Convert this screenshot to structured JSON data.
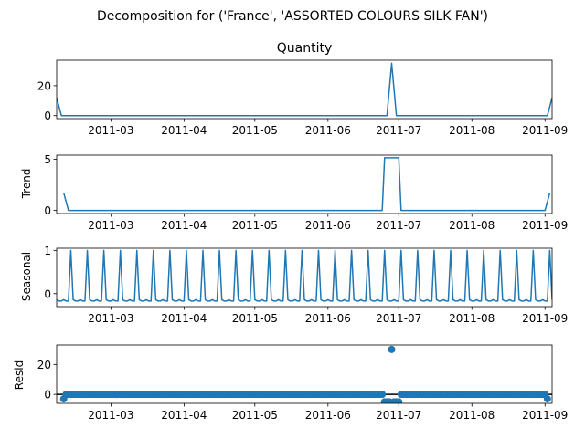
{
  "figure": {
    "suptitle": "Decomposition for ('France', 'ASSORTED COLOURS SILK FAN')"
  },
  "colors": {
    "line": "#1f77b4",
    "axis": "#000000",
    "zero_line": "#000000"
  },
  "chart_data": [
    {
      "type": "line",
      "title": "Quantity",
      "ylabel": "",
      "xlim": [
        "2011-02-06",
        "2011-09-04"
      ],
      "ylim": [
        -2,
        37
      ],
      "yticks": [
        0,
        20
      ],
      "xticks": [
        "2011-03",
        "2011-04",
        "2011-05",
        "2011-06",
        "2011-07",
        "2011-08",
        "2011-09"
      ],
      "x": [
        "2011-02-06",
        "2011-02-08",
        "2011-06-26",
        "2011-06-28",
        "2011-06-30",
        "2011-09-02",
        "2011-09-04"
      ],
      "y": [
        12,
        0,
        0,
        35,
        0,
        0,
        12
      ]
    },
    {
      "type": "line",
      "title": "",
      "ylabel": "Trend",
      "xlim": [
        "2011-02-06",
        "2011-09-04"
      ],
      "ylim": [
        -0.3,
        5.4
      ],
      "yticks": [
        0,
        5
      ],
      "xticks": [
        "2011-03",
        "2011-04",
        "2011-05",
        "2011-06",
        "2011-07",
        "2011-08",
        "2011-09"
      ],
      "x": [
        "2011-02-09",
        "2011-02-11",
        "2011-06-24",
        "2011-06-25",
        "2011-07-01",
        "2011-07-02",
        "2011-09-01",
        "2011-09-03"
      ],
      "y": [
        1.71,
        0,
        0,
        5.14,
        5.14,
        0,
        0,
        1.71
      ]
    },
    {
      "type": "line",
      "title": "",
      "ylabel": "Seasonal",
      "xlim": [
        "2011-02-06",
        "2011-09-04"
      ],
      "ylim": [
        -0.3,
        1.05
      ],
      "yticks": [
        0,
        1
      ],
      "xticks": [
        "2011-03",
        "2011-04",
        "2011-05",
        "2011-06",
        "2011-07",
        "2011-08",
        "2011-09"
      ],
      "period_days": 7,
      "pattern": [
        -0.14,
        -0.17,
        -0.17,
        -0.14,
        -0.17,
        -0.17,
        1.0
      ],
      "start": "2011-02-06"
    },
    {
      "type": "scatter",
      "title": "",
      "ylabel": "Resid",
      "xlim": [
        "2011-02-06",
        "2011-09-04"
      ],
      "ylim": [
        -6,
        33
      ],
      "yticks": [
        0,
        20
      ],
      "xticks": [
        "2011-03",
        "2011-04",
        "2011-05",
        "2011-06",
        "2011-07",
        "2011-08",
        "2011-09"
      ],
      "zero_line": true,
      "points": [
        {
          "x": "2011-02-09",
          "y": -3
        },
        {
          "x": "2011-02-10",
          "y": 0
        },
        {
          "x": "2011-02-11",
          "y": 0
        },
        {
          "x": "2011-02-12",
          "y": 0
        },
        {
          "x": "2011-02-13",
          "y": 0
        },
        {
          "x": "2011-02-14",
          "y": 0
        },
        {
          "x": "2011-02-15",
          "y": 0
        },
        {
          "x": "2011-02-16",
          "y": 0
        },
        {
          "x": "2011-02-17",
          "y": 0
        },
        {
          "x": "2011-02-18",
          "y": 0
        },
        {
          "x": "2011-02-19",
          "y": 0
        },
        {
          "x": "2011-02-20",
          "y": 0
        },
        {
          "x": "2011-02-21",
          "y": 0
        },
        {
          "x": "2011-02-22",
          "y": 0
        },
        {
          "x": "2011-02-23",
          "y": 0
        },
        {
          "x": "2011-02-24",
          "y": 0
        },
        {
          "x": "2011-02-25",
          "y": 0
        },
        {
          "x": "2011-02-26",
          "y": 0
        },
        {
          "x": "2011-02-27",
          "y": 0
        },
        {
          "x": "2011-02-28",
          "y": 0
        },
        {
          "x": "2011-03-01",
          "y": 0
        },
        {
          "x": "2011-03-02",
          "y": 0
        },
        {
          "x": "2011-03-03",
          "y": 0
        },
        {
          "x": "2011-03-04",
          "y": 0
        },
        {
          "x": "2011-03-05",
          "y": 0
        },
        {
          "x": "2011-03-06",
          "y": 0
        },
        {
          "x": "2011-03-07",
          "y": 0
        },
        {
          "x": "2011-03-08",
          "y": 0
        },
        {
          "x": "2011-03-09",
          "y": 0
        },
        {
          "x": "2011-03-10",
          "y": 0
        },
        {
          "x": "2011-03-11",
          "y": 0
        },
        {
          "x": "2011-03-12",
          "y": 0
        },
        {
          "x": "2011-03-13",
          "y": 0
        },
        {
          "x": "2011-03-14",
          "y": 0
        },
        {
          "x": "2011-03-15",
          "y": 0
        },
        {
          "x": "2011-03-16",
          "y": 0
        },
        {
          "x": "2011-03-17",
          "y": 0
        },
        {
          "x": "2011-03-18",
          "y": 0
        },
        {
          "x": "2011-03-19",
          "y": 0
        },
        {
          "x": "2011-03-20",
          "y": 0
        },
        {
          "x": "2011-03-21",
          "y": 0
        },
        {
          "x": "2011-03-22",
          "y": 0
        },
        {
          "x": "2011-03-23",
          "y": 0
        },
        {
          "x": "2011-03-24",
          "y": 0
        },
        {
          "x": "2011-03-25",
          "y": 0
        },
        {
          "x": "2011-03-26",
          "y": 0
        },
        {
          "x": "2011-03-27",
          "y": 0
        },
        {
          "x": "2011-03-28",
          "y": 0
        },
        {
          "x": "2011-03-29",
          "y": 0
        },
        {
          "x": "2011-03-30",
          "y": 0
        },
        {
          "x": "2011-03-31",
          "y": 0
        },
        {
          "x": "2011-04-01",
          "y": 0
        },
        {
          "x": "2011-04-02",
          "y": 0
        },
        {
          "x": "2011-04-03",
          "y": 0
        },
        {
          "x": "2011-04-04",
          "y": 0
        },
        {
          "x": "2011-04-05",
          "y": 0
        },
        {
          "x": "2011-04-06",
          "y": 0
        },
        {
          "x": "2011-04-07",
          "y": 0
        },
        {
          "x": "2011-04-08",
          "y": 0
        },
        {
          "x": "2011-04-09",
          "y": 0
        },
        {
          "x": "2011-04-10",
          "y": 0
        },
        {
          "x": "2011-04-11",
          "y": 0
        },
        {
          "x": "2011-04-12",
          "y": 0
        },
        {
          "x": "2011-04-13",
          "y": 0
        },
        {
          "x": "2011-04-14",
          "y": 0
        },
        {
          "x": "2011-04-15",
          "y": 0
        },
        {
          "x": "2011-04-16",
          "y": 0
        },
        {
          "x": "2011-04-17",
          "y": 0
        },
        {
          "x": "2011-04-18",
          "y": 0
        },
        {
          "x": "2011-04-19",
          "y": 0
        },
        {
          "x": "2011-04-20",
          "y": 0
        },
        {
          "x": "2011-04-21",
          "y": 0
        },
        {
          "x": "2011-04-22",
          "y": 0
        },
        {
          "x": "2011-04-23",
          "y": 0
        },
        {
          "x": "2011-04-24",
          "y": 0
        },
        {
          "x": "2011-04-25",
          "y": 0
        },
        {
          "x": "2011-04-26",
          "y": 0
        },
        {
          "x": "2011-04-27",
          "y": 0
        },
        {
          "x": "2011-04-28",
          "y": 0
        },
        {
          "x": "2011-04-29",
          "y": 0
        },
        {
          "x": "2011-04-30",
          "y": 0
        },
        {
          "x": "2011-05-01",
          "y": 0
        },
        {
          "x": "2011-05-02",
          "y": 0
        },
        {
          "x": "2011-05-03",
          "y": 0
        },
        {
          "x": "2011-05-04",
          "y": 0
        },
        {
          "x": "2011-05-05",
          "y": 0
        },
        {
          "x": "2011-05-06",
          "y": 0
        },
        {
          "x": "2011-05-07",
          "y": 0
        },
        {
          "x": "2011-05-08",
          "y": 0
        },
        {
          "x": "2011-05-09",
          "y": 0
        },
        {
          "x": "2011-05-10",
          "y": 0
        },
        {
          "x": "2011-05-11",
          "y": 0
        },
        {
          "x": "2011-05-12",
          "y": 0
        },
        {
          "x": "2011-05-13",
          "y": 0
        },
        {
          "x": "2011-05-14",
          "y": 0
        },
        {
          "x": "2011-05-15",
          "y": 0
        },
        {
          "x": "2011-05-16",
          "y": 0
        },
        {
          "x": "2011-05-17",
          "y": 0
        },
        {
          "x": "2011-05-18",
          "y": 0
        },
        {
          "x": "2011-05-19",
          "y": 0
        },
        {
          "x": "2011-05-20",
          "y": 0
        },
        {
          "x": "2011-05-21",
          "y": 0
        },
        {
          "x": "2011-05-22",
          "y": 0
        },
        {
          "x": "2011-05-23",
          "y": 0
        },
        {
          "x": "2011-05-24",
          "y": 0
        },
        {
          "x": "2011-05-25",
          "y": 0
        },
        {
          "x": "2011-05-26",
          "y": 0
        },
        {
          "x": "2011-05-27",
          "y": 0
        },
        {
          "x": "2011-05-28",
          "y": 0
        },
        {
          "x": "2011-05-29",
          "y": 0
        },
        {
          "x": "2011-05-30",
          "y": 0
        },
        {
          "x": "2011-05-31",
          "y": 0
        },
        {
          "x": "2011-06-01",
          "y": 0
        },
        {
          "x": "2011-06-02",
          "y": 0
        },
        {
          "x": "2011-06-03",
          "y": 0
        },
        {
          "x": "2011-06-04",
          "y": 0
        },
        {
          "x": "2011-06-05",
          "y": 0
        },
        {
          "x": "2011-06-06",
          "y": 0
        },
        {
          "x": "2011-06-07",
          "y": 0
        },
        {
          "x": "2011-06-08",
          "y": 0
        },
        {
          "x": "2011-06-09",
          "y": 0
        },
        {
          "x": "2011-06-10",
          "y": 0
        },
        {
          "x": "2011-06-11",
          "y": 0
        },
        {
          "x": "2011-06-12",
          "y": 0
        },
        {
          "x": "2011-06-13",
          "y": 0
        },
        {
          "x": "2011-06-14",
          "y": 0
        },
        {
          "x": "2011-06-15",
          "y": 0
        },
        {
          "x": "2011-06-16",
          "y": 0
        },
        {
          "x": "2011-06-17",
          "y": 0
        },
        {
          "x": "2011-06-18",
          "y": 0
        },
        {
          "x": "2011-06-19",
          "y": 0
        },
        {
          "x": "2011-06-20",
          "y": 0
        },
        {
          "x": "2011-06-21",
          "y": 0
        },
        {
          "x": "2011-06-22",
          "y": 0
        },
        {
          "x": "2011-06-23",
          "y": 0
        },
        {
          "x": "2011-06-24",
          "y": 0
        },
        {
          "x": "2011-06-25",
          "y": -5
        },
        {
          "x": "2011-06-26",
          "y": -5
        },
        {
          "x": "2011-06-27",
          "y": -5
        },
        {
          "x": "2011-06-28",
          "y": 30
        },
        {
          "x": "2011-06-29",
          "y": -5
        },
        {
          "x": "2011-06-30",
          "y": -5
        },
        {
          "x": "2011-07-01",
          "y": -5
        },
        {
          "x": "2011-07-02",
          "y": 0
        },
        {
          "x": "2011-07-03",
          "y": 0
        },
        {
          "x": "2011-07-04",
          "y": 0
        },
        {
          "x": "2011-07-05",
          "y": 0
        },
        {
          "x": "2011-07-06",
          "y": 0
        },
        {
          "x": "2011-07-07",
          "y": 0
        },
        {
          "x": "2011-07-08",
          "y": 0
        },
        {
          "x": "2011-07-09",
          "y": 0
        },
        {
          "x": "2011-07-10",
          "y": 0
        },
        {
          "x": "2011-07-11",
          "y": 0
        },
        {
          "x": "2011-07-12",
          "y": 0
        },
        {
          "x": "2011-07-13",
          "y": 0
        },
        {
          "x": "2011-07-14",
          "y": 0
        },
        {
          "x": "2011-07-15",
          "y": 0
        },
        {
          "x": "2011-07-16",
          "y": 0
        },
        {
          "x": "2011-07-17",
          "y": 0
        },
        {
          "x": "2011-07-18",
          "y": 0
        },
        {
          "x": "2011-07-19",
          "y": 0
        },
        {
          "x": "2011-07-20",
          "y": 0
        },
        {
          "x": "2011-07-21",
          "y": 0
        },
        {
          "x": "2011-07-22",
          "y": 0
        },
        {
          "x": "2011-07-23",
          "y": 0
        },
        {
          "x": "2011-07-24",
          "y": 0
        },
        {
          "x": "2011-07-25",
          "y": 0
        },
        {
          "x": "2011-07-26",
          "y": 0
        },
        {
          "x": "2011-07-27",
          "y": 0
        },
        {
          "x": "2011-07-28",
          "y": 0
        },
        {
          "x": "2011-07-29",
          "y": 0
        },
        {
          "x": "2011-07-30",
          "y": 0
        },
        {
          "x": "2011-07-31",
          "y": 0
        },
        {
          "x": "2011-08-01",
          "y": 0
        },
        {
          "x": "2011-08-02",
          "y": 0
        },
        {
          "x": "2011-08-03",
          "y": 0
        },
        {
          "x": "2011-08-04",
          "y": 0
        },
        {
          "x": "2011-08-05",
          "y": 0
        },
        {
          "x": "2011-08-06",
          "y": 0
        },
        {
          "x": "2011-08-07",
          "y": 0
        },
        {
          "x": "2011-08-08",
          "y": 0
        },
        {
          "x": "2011-08-09",
          "y": 0
        },
        {
          "x": "2011-08-10",
          "y": 0
        },
        {
          "x": "2011-08-11",
          "y": 0
        },
        {
          "x": "2011-08-12",
          "y": 0
        },
        {
          "x": "2011-08-13",
          "y": 0
        },
        {
          "x": "2011-08-14",
          "y": 0
        },
        {
          "x": "2011-08-15",
          "y": 0
        },
        {
          "x": "2011-08-16",
          "y": 0
        },
        {
          "x": "2011-08-17",
          "y": 0
        },
        {
          "x": "2011-08-18",
          "y": 0
        },
        {
          "x": "2011-08-19",
          "y": 0
        },
        {
          "x": "2011-08-20",
          "y": 0
        },
        {
          "x": "2011-08-21",
          "y": 0
        },
        {
          "x": "2011-08-22",
          "y": 0
        },
        {
          "x": "2011-08-23",
          "y": 0
        },
        {
          "x": "2011-08-24",
          "y": 0
        },
        {
          "x": "2011-08-25",
          "y": 0
        },
        {
          "x": "2011-08-26",
          "y": 0
        },
        {
          "x": "2011-08-27",
          "y": 0
        },
        {
          "x": "2011-08-28",
          "y": 0
        },
        {
          "x": "2011-08-29",
          "y": 0
        },
        {
          "x": "2011-08-30",
          "y": 0
        },
        {
          "x": "2011-08-31",
          "y": 0
        },
        {
          "x": "2011-09-01",
          "y": 0
        },
        {
          "x": "2011-09-02",
          "y": -3
        }
      ]
    }
  ]
}
